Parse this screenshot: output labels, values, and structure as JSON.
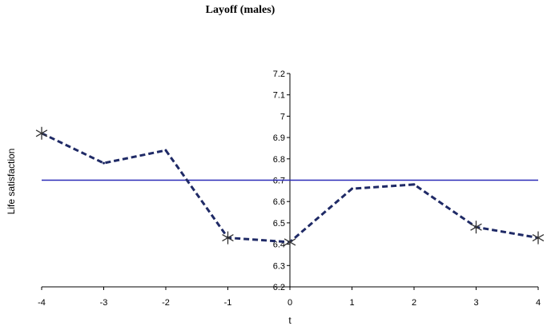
{
  "chart_data": {
    "type": "line",
    "title": "Layoff (males)",
    "xlabel": "t",
    "ylabel": "Life satisfaction",
    "xlim": [
      -4,
      4
    ],
    "ylim": [
      6.2,
      7.2
    ],
    "x_ticks": [
      "-4",
      "-3",
      "-2",
      "-1",
      "0",
      "1",
      "2",
      "3",
      "4"
    ],
    "y_ticks": [
      "6.2",
      "6.3",
      "6.4",
      "6.5",
      "6.6",
      "6.7",
      "6.8",
      "6.9",
      "7",
      "7.1",
      "7.2"
    ],
    "grid": false,
    "reference_line": {
      "y": 6.7,
      "color": "#2b2bb8"
    },
    "series": [
      {
        "x": [
          -4,
          -3,
          -2,
          -1,
          0,
          1,
          2,
          3,
          4
        ],
        "values": [
          6.92,
          6.78,
          6.84,
          6.43,
          6.41,
          6.66,
          6.68,
          6.48,
          6.43
        ],
        "line_style": "dashed",
        "color": "#1f2a66",
        "significant_markers": [
          true,
          false,
          false,
          true,
          true,
          false,
          false,
          true,
          true
        ]
      }
    ]
  }
}
